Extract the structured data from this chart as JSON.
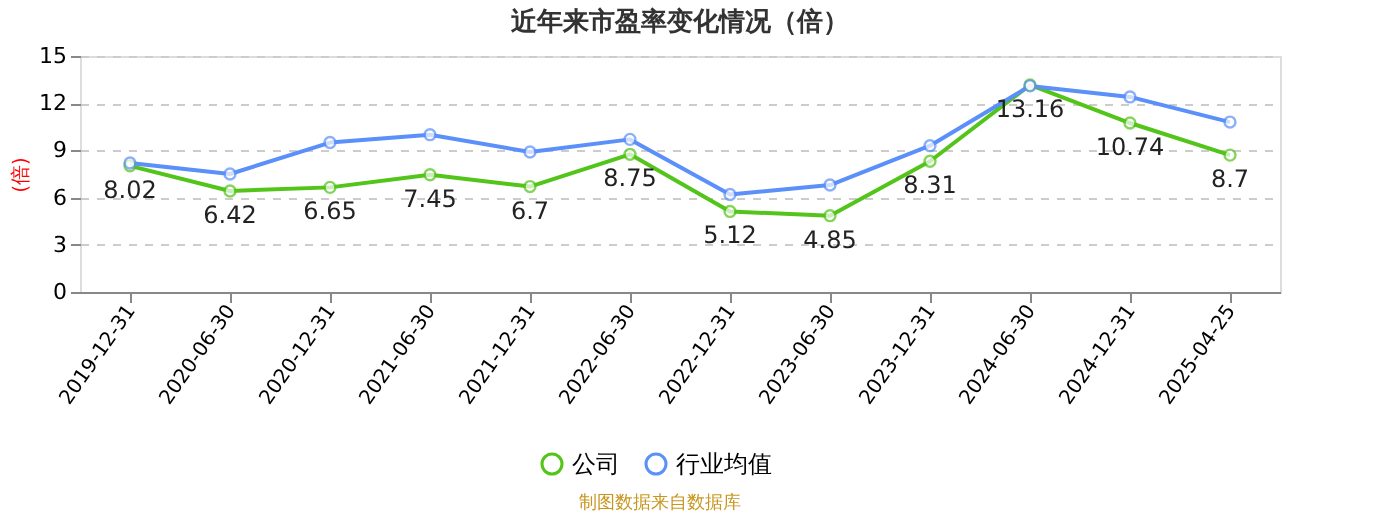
{
  "chart_data": {
    "type": "line",
    "title": "近年来市盈率变化情况（倍）",
    "ylabel": "(倍)",
    "categories": [
      "2019-12-31",
      "2020-06-30",
      "2020-12-31",
      "2021-06-30",
      "2021-12-31",
      "2022-06-30",
      "2022-12-31",
      "2023-06-30",
      "2023-12-31",
      "2024-06-30",
      "2024-12-31",
      "2025-04-25"
    ],
    "series": [
      {
        "name": "公司",
        "color": "#52c41a",
        "values": [
          8.02,
          6.42,
          6.65,
          7.45,
          6.7,
          8.75,
          5.12,
          4.85,
          8.31,
          13.16,
          10.74,
          8.7
        ],
        "value_labels": [
          "8.02",
          "6.42",
          "6.65",
          "7.45",
          "6.7",
          "8.75",
          "5.12",
          "4.85",
          "8.31",
          "13.16",
          "10.74",
          "8.7"
        ]
      },
      {
        "name": "行业均值",
        "color": "#5b8ff9",
        "values": [
          8.2,
          7.5,
          9.5,
          10.0,
          8.9,
          9.7,
          6.2,
          6.8,
          9.3,
          13.1,
          12.4,
          10.8
        ]
      }
    ],
    "ylim": [
      0,
      15
    ],
    "yticks": [
      0,
      3,
      6,
      9,
      12,
      15
    ],
    "grid": "y",
    "legend": "bottom",
    "marker": "circle",
    "line_style": "solid",
    "annotations": [
      "制图数据来自数据库"
    ]
  }
}
